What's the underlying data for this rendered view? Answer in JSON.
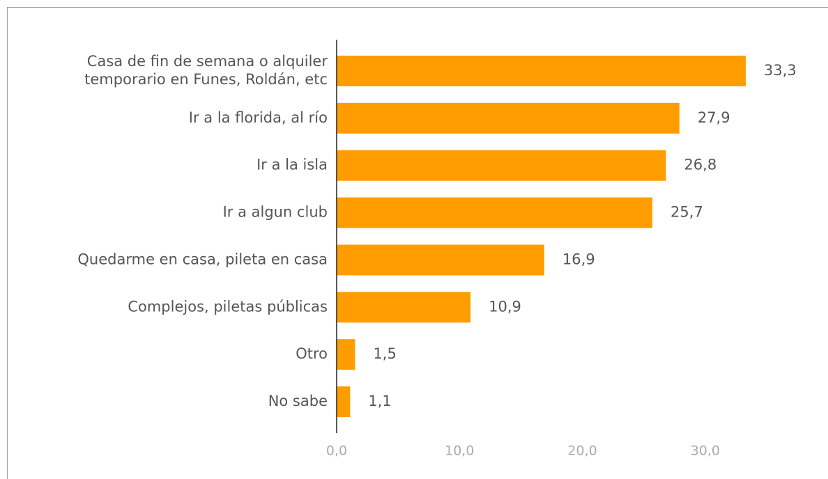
{
  "chart_data": {
    "type": "bar",
    "orientation": "horizontal",
    "categories": [
      "Casa de fin de semana o alquiler temporario en Funes, Roldán, etc",
      "Ir a la florida, al río",
      "Ir a la isla",
      "Ir a algun club",
      "Quedarme en casa, pileta en casa",
      "Complejos, piletas públicas",
      "Otro",
      "No sabe"
    ],
    "values": [
      33.3,
      27.9,
      26.8,
      25.7,
      16.9,
      10.9,
      1.5,
      1.1
    ],
    "value_labels": [
      "33,3",
      "27,9",
      "26,8",
      "25,7",
      "16,9",
      "10,9",
      "1,5",
      "1,1"
    ],
    "color": "#ff9c00",
    "xlim": [
      0,
      35
    ],
    "xticks": [
      {
        "value": 0,
        "label": "0,0"
      },
      {
        "value": 10,
        "label": "10,0"
      },
      {
        "value": 20,
        "label": "20,0"
      },
      {
        "value": 30,
        "label": "30,0"
      }
    ],
    "grid": false
  }
}
